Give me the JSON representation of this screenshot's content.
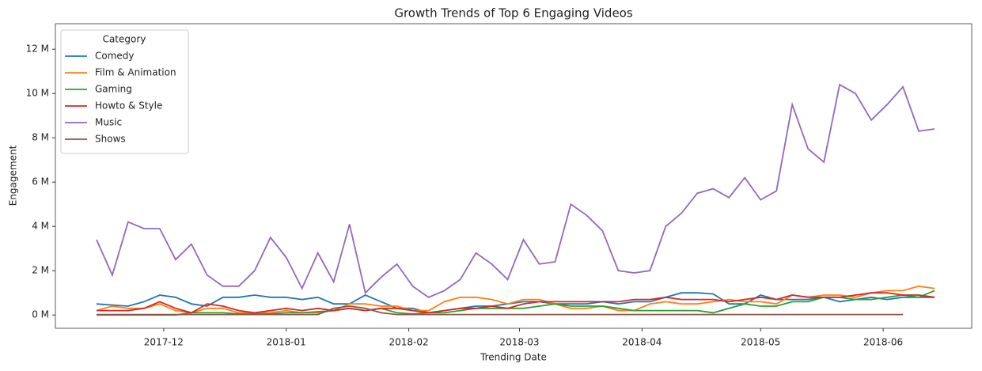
{
  "chart_data": {
    "type": "line",
    "title": "Growth Trends of Top 6 Engaging Videos",
    "xlabel": "Trending Date",
    "ylabel": "Engagement",
    "legend_title": "Category",
    "legend": "upper left",
    "x": [
      13,
      17,
      21,
      25,
      29,
      33,
      37,
      41,
      45,
      49,
      53,
      57,
      61,
      65,
      69,
      73,
      77,
      81,
      85,
      89,
      93,
      97,
      101,
      105,
      109,
      113,
      117,
      121,
      125,
      129,
      133,
      137,
      141,
      145,
      149,
      153,
      157,
      161,
      165,
      169,
      173,
      177,
      181,
      185,
      189,
      193,
      197,
      201,
      205,
      209,
      213,
      217,
      221,
      225
    ],
    "xlim": [
      2.6,
      234.4
    ],
    "xticks": [
      {
        "value": 30,
        "label": "2017-12"
      },
      {
        "value": 61,
        "label": "2018-01"
      },
      {
        "value": 92,
        "label": "2018-02"
      },
      {
        "value": 120,
        "label": "2018-03"
      },
      {
        "value": 151,
        "label": "2018-04"
      },
      {
        "value": 181,
        "label": "2018-05"
      },
      {
        "value": 212,
        "label": "2018-06"
      }
    ],
    "ylim": [
      -0.6,
      13.15
    ],
    "yticks": [
      {
        "value": 0,
        "label": "0 M"
      },
      {
        "value": 2,
        "label": "2 M"
      },
      {
        "value": 4,
        "label": "4 M"
      },
      {
        "value": 6,
        "label": "6 M"
      },
      {
        "value": 8,
        "label": "8 M"
      },
      {
        "value": 10,
        "label": "10 M"
      },
      {
        "value": 12,
        "label": "12 M"
      }
    ],
    "series": [
      {
        "name": "Comedy",
        "color": "#1f77b4",
        "values": [
          0.5,
          0.45,
          0.4,
          0.6,
          0.9,
          0.8,
          0.5,
          0.4,
          0.8,
          0.8,
          0.9,
          0.8,
          0.8,
          0.7,
          0.8,
          0.5,
          0.5,
          0.9,
          0.6,
          0.3,
          0.3,
          0.1,
          0.2,
          0.3,
          0.4,
          0.4,
          0.5,
          0.6,
          0.6,
          0.5,
          0.5,
          0.5,
          0.6,
          0.5,
          0.6,
          0.6,
          0.8,
          1.0,
          1.0,
          0.95,
          0.5,
          0.5,
          0.9,
          0.7,
          0.7,
          0.7,
          0.8,
          0.6,
          0.7,
          0.8,
          0.7,
          0.8,
          0.8,
          0.8
        ]
      },
      {
        "name": "Film & Animation",
        "color": "#ff7f0e",
        "values": [
          0.2,
          0.4,
          0.3,
          0.3,
          0.5,
          0.2,
          0.1,
          0.3,
          0.3,
          0.1,
          0.1,
          0.1,
          0.2,
          0.1,
          0.1,
          0.2,
          0.5,
          0.5,
          0.4,
          0.4,
          0.2,
          0.2,
          0.6,
          0.8,
          0.8,
          0.7,
          0.5,
          0.7,
          0.7,
          0.5,
          0.3,
          0.3,
          0.4,
          0.2,
          0.2,
          0.5,
          0.6,
          0.5,
          0.5,
          0.6,
          0.7,
          0.6,
          0.6,
          0.5,
          0.9,
          0.8,
          0.9,
          0.9,
          0.8,
          1.0,
          1.1,
          1.1,
          1.3,
          1.2
        ]
      },
      {
        "name": "Gaming",
        "color": "#2ca02c",
        "values": [
          0,
          0,
          0,
          0,
          0,
          0,
          0.1,
          0.1,
          0.1,
          0.05,
          0.05,
          0.05,
          0.1,
          0.1,
          0.15,
          0.2,
          0.3,
          0.2,
          0.3,
          0.1,
          0.05,
          0.1,
          0.1,
          0.2,
          0.3,
          0.3,
          0.3,
          0.3,
          0.4,
          0.5,
          0.4,
          0.4,
          0.4,
          0.3,
          0.2,
          0.2,
          0.2,
          0.2,
          0.2,
          0.1,
          0.3,
          0.5,
          0.4,
          0.4,
          0.6,
          0.6,
          0.8,
          0.8,
          0.7,
          0.7,
          0.8,
          0.9,
          0.8,
          1.1
        ]
      },
      {
        "name": "Howto & Style",
        "color": "#d62728",
        "values": [
          0.2,
          0.2,
          0.2,
          0.3,
          0.6,
          0.3,
          0.1,
          0.5,
          0.4,
          0.2,
          0.1,
          0.2,
          0.3,
          0.2,
          0.3,
          0.2,
          0.3,
          0.2,
          0.3,
          0.3,
          0.2,
          0.1,
          0.2,
          0.3,
          0.3,
          0.4,
          0.3,
          0.5,
          0.6,
          0.6,
          0.6,
          0.6,
          0.6,
          0.6,
          0.7,
          0.7,
          0.8,
          0.7,
          0.7,
          0.7,
          0.6,
          0.7,
          0.8,
          0.7,
          0.9,
          0.8,
          0.8,
          0.8,
          0.9,
          1.0,
          1.0,
          0.9,
          0.9,
          0.8
        ]
      },
      {
        "name": "Music",
        "color": "#9467bd",
        "values": [
          3.4,
          1.8,
          4.2,
          3.9,
          3.9,
          2.5,
          3.2,
          1.8,
          1.3,
          1.3,
          2.0,
          3.5,
          2.6,
          1.2,
          2.8,
          1.5,
          4.1,
          1.0,
          1.7,
          2.3,
          1.3,
          0.8,
          1.1,
          1.6,
          2.8,
          2.3,
          1.6,
          3.4,
          2.3,
          2.4,
          5.0,
          4.5,
          3.8,
          2.0,
          1.9,
          2.0,
          4.0,
          4.6,
          5.5,
          5.7,
          5.3,
          6.2,
          5.2,
          5.6,
          9.5,
          7.5,
          6.9,
          10.4,
          10.0,
          8.8,
          9.5,
          10.3,
          8.3,
          8.4
        ]
      },
      {
        "name": "Shows",
        "color": "#8c564b",
        "values": [
          0.02,
          0.02,
          0.02,
          0.02,
          0.02,
          0.02,
          0.02,
          0.02,
          0.02,
          0.02,
          0.02,
          0.02,
          0.02,
          0.02,
          0.02,
          0.3,
          0.4,
          0.3,
          0.1,
          0.02,
          0.02,
          0.02,
          0.02,
          0.02,
          0.02,
          0.02,
          0.02,
          0.02,
          0.02,
          0.02,
          0.02,
          0.02,
          0.02,
          0.02,
          0.02,
          0.02,
          0.02,
          0.02,
          0.02,
          0.02,
          0.02,
          0.02,
          0.02,
          0.02,
          0.02,
          0.02,
          0.02,
          0.02,
          0.02,
          0.02,
          0.02,
          0.02,
          null,
          null
        ]
      }
    ]
  }
}
